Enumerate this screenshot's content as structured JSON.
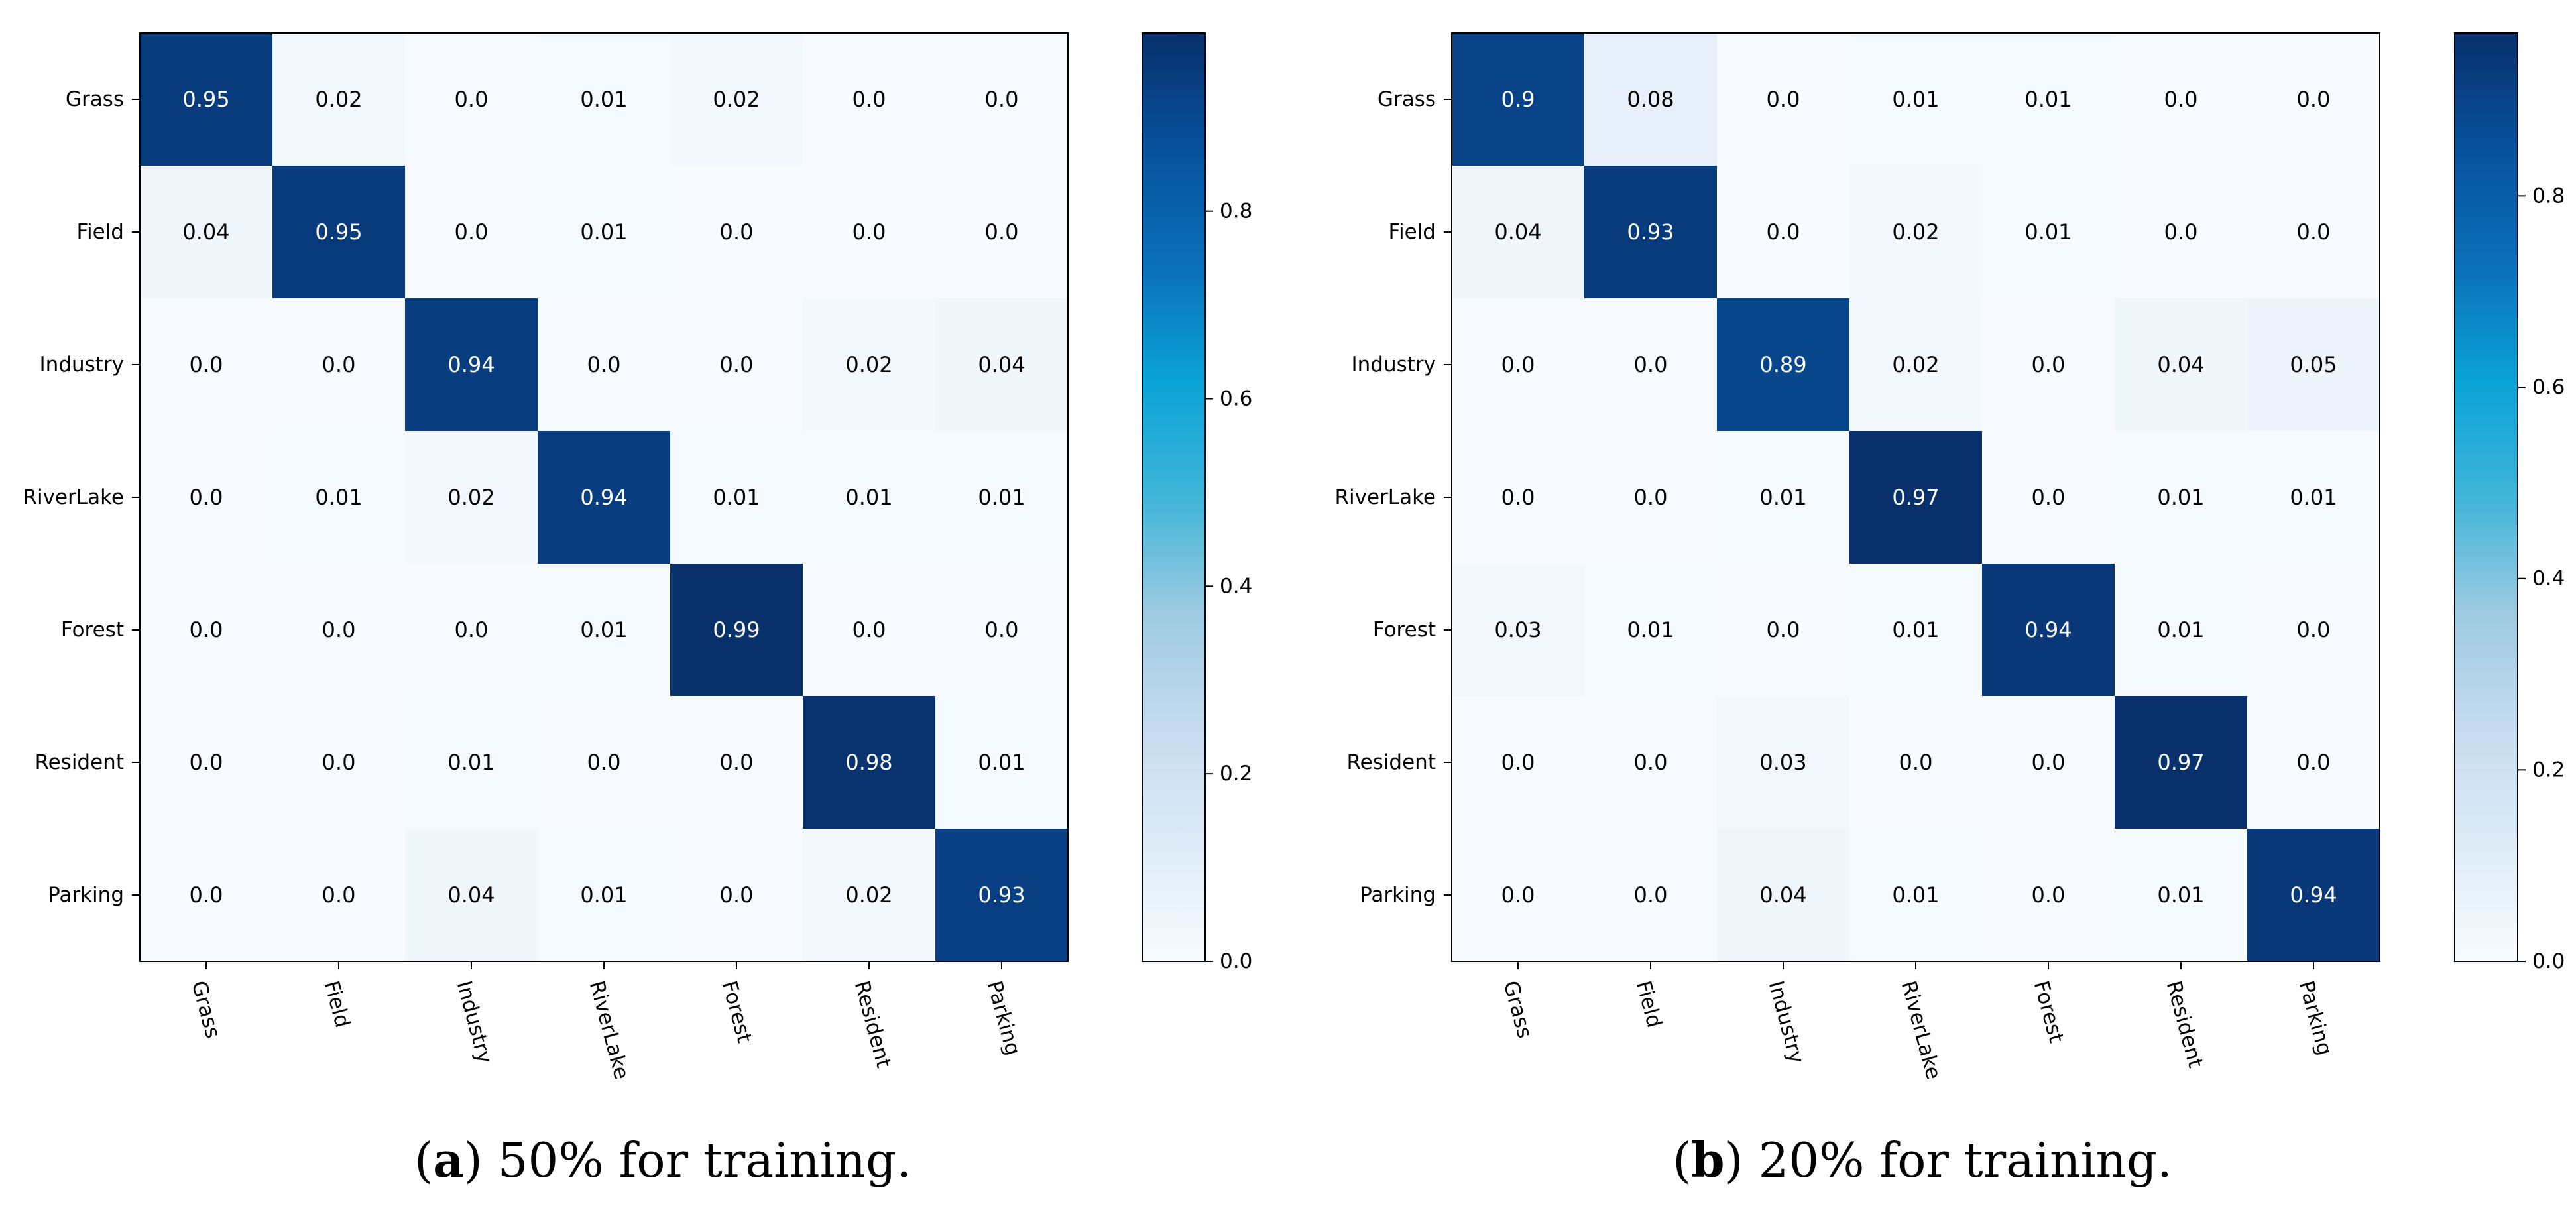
{
  "chart_data": [
    {
      "type": "heatmap",
      "caption_label": "a",
      "caption_text": "50% for training.",
      "rows": [
        "Grass",
        "Field",
        "Industry",
        "RiverLake",
        "Forest",
        "Resident",
        "Parking"
      ],
      "cols": [
        "Grass",
        "Field",
        "Industry",
        "RiverLake",
        "Forest",
        "Resident",
        "Parking"
      ],
      "values": [
        [
          0.95,
          0.02,
          0.0,
          0.01,
          0.02,
          0.0,
          0.0
        ],
        [
          0.04,
          0.95,
          0.0,
          0.01,
          0.0,
          0.0,
          0.0
        ],
        [
          0.0,
          0.0,
          0.94,
          0.0,
          0.0,
          0.02,
          0.04
        ],
        [
          0.0,
          0.01,
          0.02,
          0.94,
          0.01,
          0.01,
          0.01
        ],
        [
          0.0,
          0.0,
          0.0,
          0.01,
          0.99,
          0.0,
          0.0
        ],
        [
          0.0,
          0.0,
          0.01,
          0.0,
          0.0,
          0.98,
          0.01
        ],
        [
          0.0,
          0.0,
          0.04,
          0.01,
          0.0,
          0.02,
          0.93
        ]
      ],
      "colorbar": {
        "vmin": 0.0,
        "vmax": 0.99,
        "ticks": [
          "0.0",
          "0.2",
          "0.4",
          "0.6",
          "0.8"
        ]
      }
    },
    {
      "type": "heatmap",
      "caption_label": "b",
      "caption_text": "20% for training.",
      "rows": [
        "Grass",
        "Field",
        "Industry",
        "RiverLake",
        "Forest",
        "Resident",
        "Parking"
      ],
      "cols": [
        "Grass",
        "Field",
        "Industry",
        "RiverLake",
        "Forest",
        "Resident",
        "Parking"
      ],
      "values": [
        [
          0.9,
          0.08,
          0.0,
          0.01,
          0.01,
          0.0,
          0.0
        ],
        [
          0.04,
          0.93,
          0.0,
          0.02,
          0.01,
          0.0,
          0.0
        ],
        [
          0.0,
          0.0,
          0.89,
          0.02,
          0.0,
          0.04,
          0.05
        ],
        [
          0.0,
          0.0,
          0.01,
          0.97,
          0.0,
          0.01,
          0.01
        ],
        [
          0.03,
          0.01,
          0.0,
          0.01,
          0.94,
          0.01,
          0.0
        ],
        [
          0.0,
          0.0,
          0.03,
          0.0,
          0.0,
          0.97,
          0.0
        ],
        [
          0.0,
          0.0,
          0.04,
          0.01,
          0.0,
          0.01,
          0.94
        ]
      ],
      "colorbar": {
        "vmin": 0.0,
        "vmax": 0.97,
        "ticks": [
          "0.0",
          "0.2",
          "0.4",
          "0.6",
          "0.8"
        ]
      }
    }
  ]
}
